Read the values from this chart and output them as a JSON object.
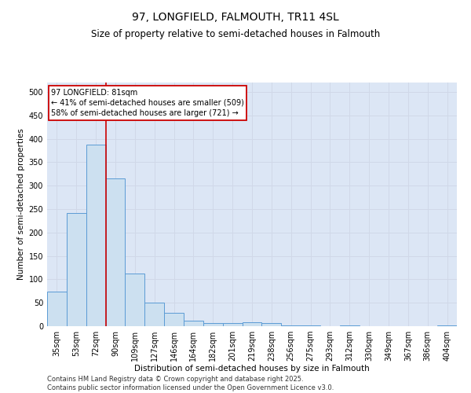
{
  "title": "97, LONGFIELD, FALMOUTH, TR11 4SL",
  "subtitle": "Size of property relative to semi-detached houses in Falmouth",
  "xlabel": "Distribution of semi-detached houses by size in Falmouth",
  "ylabel": "Number of semi-detached properties",
  "property_label": "97 LONGFIELD: 81sqm",
  "smaller_text": "← 41% of semi-detached houses are smaller (509)",
  "larger_text": "58% of semi-detached houses are larger (721) →",
  "categories": [
    "35sqm",
    "53sqm",
    "72sqm",
    "90sqm",
    "109sqm",
    "127sqm",
    "146sqm",
    "164sqm",
    "182sqm",
    "201sqm",
    "219sqm",
    "238sqm",
    "256sqm",
    "275sqm",
    "293sqm",
    "312sqm",
    "330sqm",
    "349sqm",
    "367sqm",
    "386sqm",
    "404sqm"
  ],
  "values": [
    73,
    241,
    387,
    315,
    113,
    50,
    28,
    12,
    7,
    7,
    8,
    6,
    2,
    2,
    0,
    1,
    0,
    0,
    0,
    0,
    2
  ],
  "bar_color": "#cce0f0",
  "bar_edge_color": "#5b9bd5",
  "vline_color": "#cc0000",
  "vline_bin_index": 2,
  "grid_color": "#d0d8e8",
  "background_color": "#dce6f5",
  "ylim": [
    0,
    520
  ],
  "yticks": [
    0,
    50,
    100,
    150,
    200,
    250,
    300,
    350,
    400,
    450,
    500
  ],
  "annotation_box_color": "#cc0000",
  "title_fontsize": 10,
  "subtitle_fontsize": 8.5,
  "axis_label_fontsize": 7.5,
  "tick_fontsize": 7,
  "annotation_fontsize": 7,
  "footer_fontsize": 6,
  "footer_line1": "Contains HM Land Registry data © Crown copyright and database right 2025.",
  "footer_line2": "Contains public sector information licensed under the Open Government Licence v3.0."
}
